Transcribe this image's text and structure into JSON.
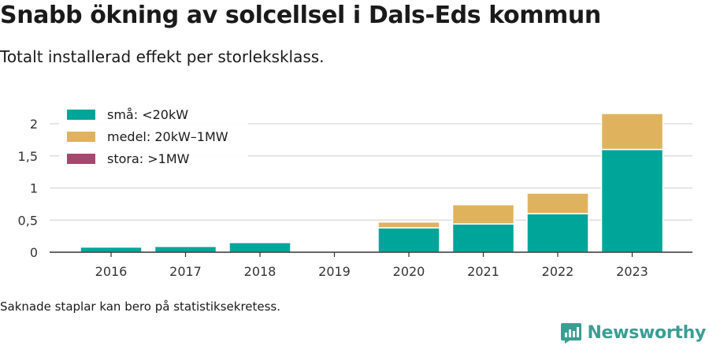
{
  "title": "Snabb ökning av solcellsel i Dals-Eds kommun",
  "subtitle": "Totalt installerad effekt per storleksklass.",
  "note": "Saknade staplar kan bero på statistiksekretess.",
  "brand": {
    "name": "Newsworthy",
    "icon": "newsworthy-logo-icon"
  },
  "chart_data": {
    "type": "bar",
    "stacked": true,
    "categories": [
      "2016",
      "2017",
      "2018",
      "2019",
      "2020",
      "2021",
      "2022",
      "2023"
    ],
    "series": [
      {
        "name": "små: <20kW",
        "color": "#00a59a",
        "values": [
          0.08,
          0.09,
          0.15,
          0,
          0.38,
          0.44,
          0.6,
          1.6
        ]
      },
      {
        "name": "medel: 20kW–1MW",
        "color": "#dfb35e",
        "values": [
          0,
          0,
          0,
          0,
          0.09,
          0.3,
          0.32,
          0.56
        ]
      },
      {
        "name": "stora: >1MW",
        "color": "#a8466d",
        "values": [
          0,
          0,
          0,
          0,
          0,
          0,
          0,
          0
        ]
      }
    ],
    "yticks": [
      0,
      0.5,
      1,
      1.5,
      2
    ],
    "ytick_labels": [
      "0",
      "0,5",
      "1",
      "1,5",
      "2"
    ],
    "ylim": [
      0,
      2.2
    ],
    "xlabel": "",
    "ylabel": "",
    "grid": true,
    "legend": "top-left"
  }
}
